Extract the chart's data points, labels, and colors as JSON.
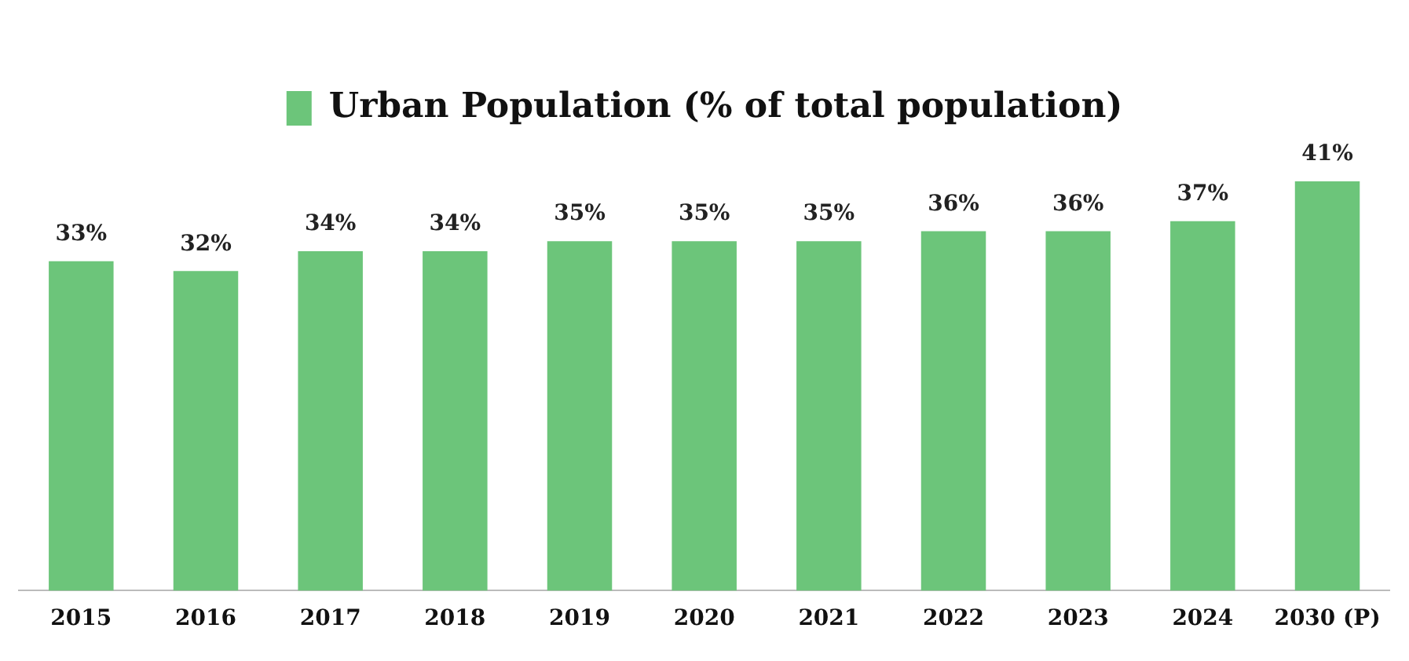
{
  "chart_data": {
    "type": "bar",
    "categories": [
      "2015",
      "2016",
      "2017",
      "2018",
      "2019",
      "2020",
      "2021",
      "2022",
      "2023",
      "2024",
      "2030 (P)"
    ],
    "series": [
      {
        "name": "Urban Population (% of total population)",
        "color": "#6cc57a",
        "values": [
          33,
          32,
          34,
          34,
          35,
          35,
          35,
          36,
          36,
          37,
          41
        ],
        "value_labels": [
          "33%",
          "32%",
          "34%",
          "34%",
          "35%",
          "35%",
          "35%",
          "36%",
          "36%",
          "37%",
          "41%"
        ]
      }
    ],
    "legend": "top",
    "grid": false
  }
}
